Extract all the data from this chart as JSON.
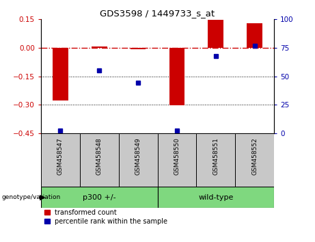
{
  "title": "GDS3598 / 1449733_s_at",
  "samples": [
    "GSM458547",
    "GSM458548",
    "GSM458549",
    "GSM458550",
    "GSM458551",
    "GSM458552"
  ],
  "red_values": [
    -0.278,
    0.008,
    -0.008,
    -0.305,
    0.148,
    0.13
  ],
  "blue_values": [
    2,
    55,
    44,
    2,
    68,
    77
  ],
  "ylim_left": [
    -0.45,
    0.15
  ],
  "ylim_right": [
    0,
    100
  ],
  "yticks_left": [
    0.15,
    0.0,
    -0.15,
    -0.3,
    -0.45
  ],
  "yticks_right": [
    100,
    75,
    50,
    25,
    0
  ],
  "dotted_lines": [
    -0.15,
    -0.3
  ],
  "bar_color": "#CC0000",
  "dot_color": "#0000AA",
  "ref_line_color": "#CC0000",
  "group_bg_color": "#C8C8C8",
  "group_green_color": "#7FD87F",
  "legend_labels": [
    "transformed count",
    "percentile rank within the sample"
  ],
  "legend_colors": [
    "#CC0000",
    "#0000AA"
  ],
  "bar_width": 0.4
}
